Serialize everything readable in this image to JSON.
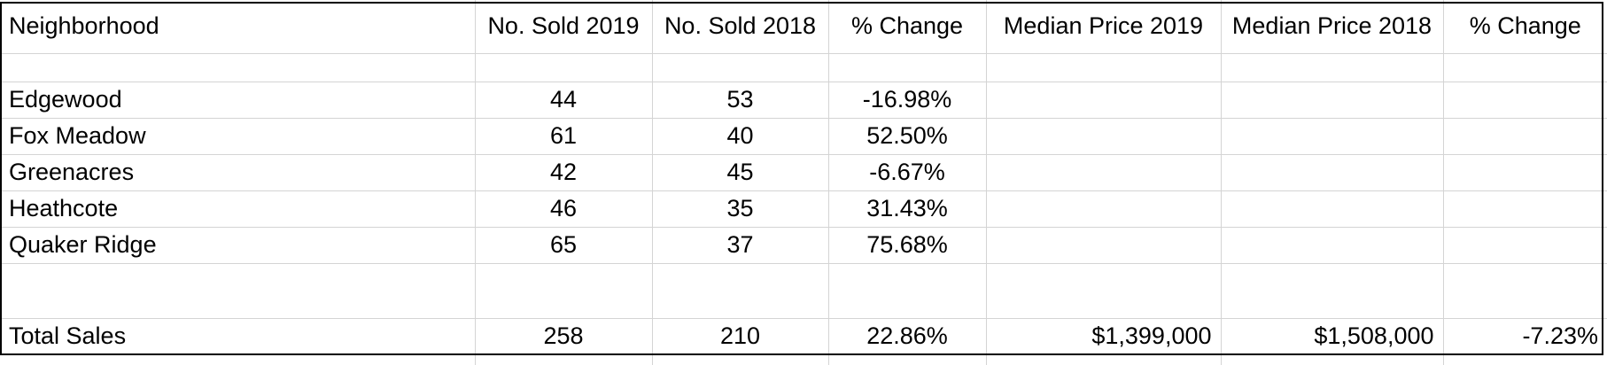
{
  "table": {
    "headers": [
      "Neighborhood",
      "No. Sold 2019",
      "No. Sold 2018",
      "% Change",
      "Median Price 2019",
      "Median Price 2018",
      "% Change"
    ],
    "rows": [
      {
        "neighborhood": "Edgewood",
        "sold_2019": "44",
        "sold_2018": "53",
        "pct_change": "-16.98%"
      },
      {
        "neighborhood": "Fox Meadow",
        "sold_2019": "61",
        "sold_2018": "40",
        "pct_change": "52.50%"
      },
      {
        "neighborhood": "Greenacres",
        "sold_2019": "42",
        "sold_2018": "45",
        "pct_change": "-6.67%"
      },
      {
        "neighborhood": "Heathcote",
        "sold_2019": "46",
        "sold_2018": "35",
        "pct_change": "31.43%"
      },
      {
        "neighborhood": "Quaker Ridge",
        "sold_2019": "65",
        "sold_2018": "37",
        "pct_change": "75.68%"
      }
    ],
    "total": {
      "label": "Total Sales",
      "sold_2019": "258",
      "sold_2018": "210",
      "pct_change": "22.86%",
      "median_2019": "$1,399,000",
      "median_2018": "$1,508,000",
      "median_pct_change": "-7.23%"
    }
  }
}
